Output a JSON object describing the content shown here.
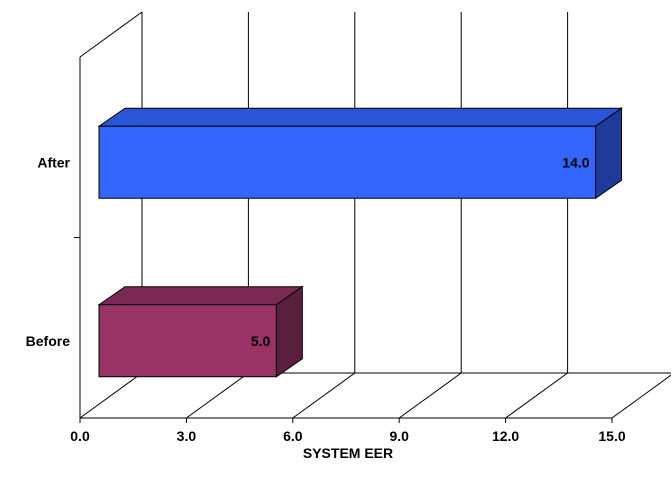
{
  "chart_data": {
    "type": "bar",
    "orientation": "horizontal",
    "three_d": true,
    "categories": [
      "After",
      "Before"
    ],
    "values": [
      14.0,
      5.0
    ],
    "value_labels": [
      "14.0",
      "5.0"
    ],
    "colors": {
      "After": {
        "front": "#3366ff",
        "top": "#2a55d6",
        "side": "#1f3a99"
      },
      "Before": {
        "front": "#993366",
        "top": "#7a2a52",
        "side": "#5a1f3d"
      }
    },
    "xlabel": "SYSTEM EER",
    "ylabel": "",
    "title": "",
    "xlim": [
      0,
      15
    ],
    "xticks": [
      "0.0",
      "3.0",
      "6.0",
      "9.0",
      "12.0",
      "15.0"
    ],
    "grid": true
  }
}
